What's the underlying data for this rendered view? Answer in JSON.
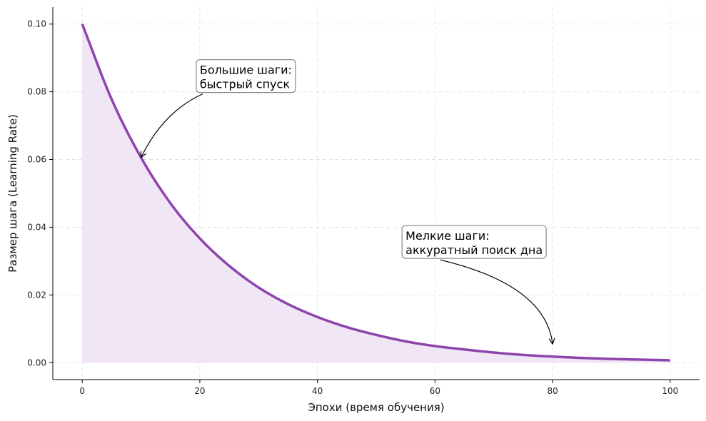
{
  "chart_data": {
    "type": "area",
    "title": "",
    "xlabel": "Эпохи (время обучения)",
    "ylabel": "Размер шага (Learning Rate)",
    "xlim": [
      -5,
      105
    ],
    "ylim": [
      -0.005,
      0.105
    ],
    "xticks": [
      0,
      20,
      40,
      60,
      80,
      100
    ],
    "yticks": [
      0.0,
      0.02,
      0.04,
      0.06,
      0.08,
      0.1
    ],
    "ytick_labels": [
      "0.00",
      "0.02",
      "0.04",
      "0.06",
      "0.08",
      "0.10"
    ],
    "grid": true,
    "colors": {
      "line": "#8e44ad",
      "fill": "#f1e6f6",
      "grid": "#dddddd"
    },
    "series": [
      {
        "x": [
          0,
          5,
          10,
          15,
          20,
          25,
          30,
          35,
          40,
          45,
          50,
          55,
          60,
          65,
          70,
          75,
          80,
          85,
          90,
          95,
          100
        ],
        "values": [
          0.1,
          0.0778,
          0.0606,
          0.0471,
          0.0367,
          0.0286,
          0.0222,
          0.0173,
          0.0135,
          0.0105,
          0.0082,
          0.0063,
          0.0049,
          0.0039,
          0.003,
          0.0023,
          0.0018,
          0.0014,
          0.0011,
          0.0009,
          0.0007
        ]
      }
    ],
    "annotations": [
      {
        "lines": [
          "Большие шаги:",
          "быстрый спуск"
        ],
        "text_x": 20,
        "text_y": 0.08,
        "point_x": 10,
        "point_y": 0.0606
      },
      {
        "lines": [
          "Мелкие шаги:",
          "аккуратный поиск дна"
        ],
        "text_x": 55,
        "text_y": 0.031,
        "point_x": 80,
        "point_y": 0.0055
      }
    ]
  }
}
